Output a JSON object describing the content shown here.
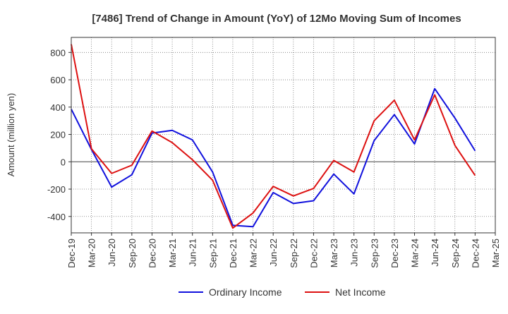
{
  "chart_data": {
    "type": "line",
    "title": "[7486]  Trend of Change in Amount (YoY) of 12Mo Moving Sum of Incomes",
    "xlabel": "",
    "ylabel": "Amount (million yen)",
    "categories": [
      "Dec-19",
      "Mar-20",
      "Jun-20",
      "Sep-20",
      "Dec-20",
      "Mar-21",
      "Jun-21",
      "Sep-21",
      "Dec-21",
      "Mar-22",
      "Jun-22",
      "Sep-22",
      "Dec-22",
      "Mar-23",
      "Jun-23",
      "Sep-23",
      "Dec-23",
      "Mar-24",
      "Jun-24",
      "Sep-24",
      "Dec-24",
      "Mar-25"
    ],
    "yticks": [
      "800",
      "600",
      "400",
      "200",
      "0",
      "-200",
      "-400"
    ],
    "ylim": [
      -520,
      910
    ],
    "grid": true,
    "legend_position": "bottom",
    "series": [
      {
        "name": "Ordinary Income",
        "color": "#1111dd",
        "values": [
          385,
          90,
          -185,
          -95,
          210,
          230,
          160,
          -75,
          -465,
          -475,
          -225,
          -305,
          -285,
          -90,
          -235,
          155,
          345,
          130,
          535,
          320,
          80,
          null
        ]
      },
      {
        "name": "Net Income",
        "color": "#dd1111",
        "values": [
          860,
          95,
          -85,
          -25,
          225,
          140,
          15,
          -135,
          -485,
          -375,
          -180,
          -250,
          -195,
          10,
          -75,
          300,
          450,
          160,
          490,
          120,
          -100,
          null
        ]
      }
    ]
  }
}
